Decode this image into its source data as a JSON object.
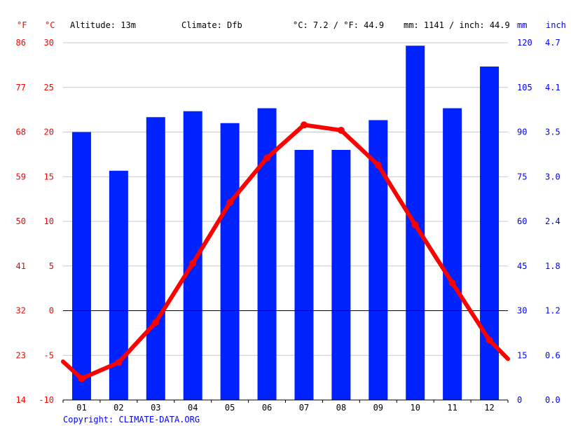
{
  "header": {
    "altitude": "Altitude: 13m",
    "climate": "Climate: Dfb",
    "temp_avg": "°C: 7.2 / °F: 44.9",
    "precip_total": "mm: 1141 / inch: 44.9"
  },
  "units": {
    "f": "°F",
    "c": "°C",
    "mm": "mm",
    "inch": "inch"
  },
  "copyright": "Copyright: CLIMATE-DATA.ORG",
  "colors": {
    "temperature": "#ff0000",
    "precipitation": "#0022ff",
    "fahrenheit_axis": "#ff0000",
    "celsius_axis": "#ff0000",
    "mm_axis": "#0000ff",
    "inch_axis": "#0000ff"
  },
  "chart_data": {
    "type": "bar+line",
    "categories": [
      "01",
      "02",
      "03",
      "04",
      "05",
      "06",
      "07",
      "08",
      "09",
      "10",
      "11",
      "12"
    ],
    "series": [
      {
        "name": "Precipitation",
        "kind": "bar",
        "axis": "mm",
        "values": [
          90,
          77,
          95,
          97,
          93,
          98,
          84,
          84,
          94,
          119,
          98,
          112
        ]
      },
      {
        "name": "Temperature",
        "kind": "line",
        "axis": "celsius",
        "values": [
          -7.6,
          -5.8,
          -1.3,
          5.3,
          12.1,
          17.1,
          20.8,
          20.2,
          16.3,
          9.6,
          3.1,
          -3.3
        ],
        "line_start": -5.7,
        "line_end": -5.4
      }
    ],
    "axes": {
      "celsius": {
        "ticks": [
          -10,
          -5,
          0,
          5,
          10,
          15,
          20,
          25,
          30
        ],
        "range": [
          -10,
          30
        ]
      },
      "fahrenheit": {
        "ticks": [
          14,
          23,
          32,
          41,
          50,
          59,
          68,
          77,
          86
        ]
      },
      "mm": {
        "ticks": [
          0,
          15,
          30,
          45,
          60,
          75,
          90,
          105,
          120
        ],
        "range": [
          0,
          120
        ]
      },
      "inch": {
        "ticks": [
          "0.0",
          "0.6",
          "1.2",
          "1.8",
          "2.4",
          "3.0",
          "3.5",
          "4.1",
          "4.7"
        ]
      }
    },
    "grid": true,
    "zero_line": true
  }
}
